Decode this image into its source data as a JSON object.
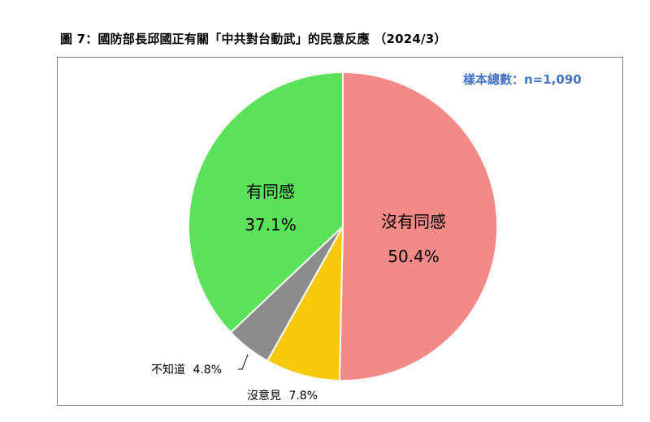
{
  "title": "圖 7：國防部長邱國正有關「中共對台動武」的民意反應 （2024/3）",
  "sample_size": "樣本總數：n=1,090",
  "colors": {
    "disagree": "#f28a87",
    "undecided": "#f9c80a",
    "dont_know": "#8c8c8c",
    "agree": "#5ce25a"
  },
  "chart_data": {
    "type": "pie",
    "title": "圖 7：國防部長邱國正有關「中共對台動武」的民意反應 （2024/3）",
    "slices": [
      {
        "key": "disagree",
        "label": "沒有同感",
        "value": 50.4,
        "value_label": "50.4%",
        "color": "#f28a87"
      },
      {
        "key": "undecided",
        "label": "沒意見",
        "value": 7.8,
        "value_label": "7.8%",
        "color": "#f9c80a"
      },
      {
        "key": "dont_know",
        "label": "不知道",
        "value": 4.8,
        "value_label": "4.8%",
        "color": "#8c8c8c"
      },
      {
        "key": "agree",
        "label": "有同感",
        "value": 37.1,
        "value_label": "37.1%",
        "color": "#5ce25a"
      }
    ],
    "start_angle": "12 o'clock",
    "direction": "clockwise"
  }
}
